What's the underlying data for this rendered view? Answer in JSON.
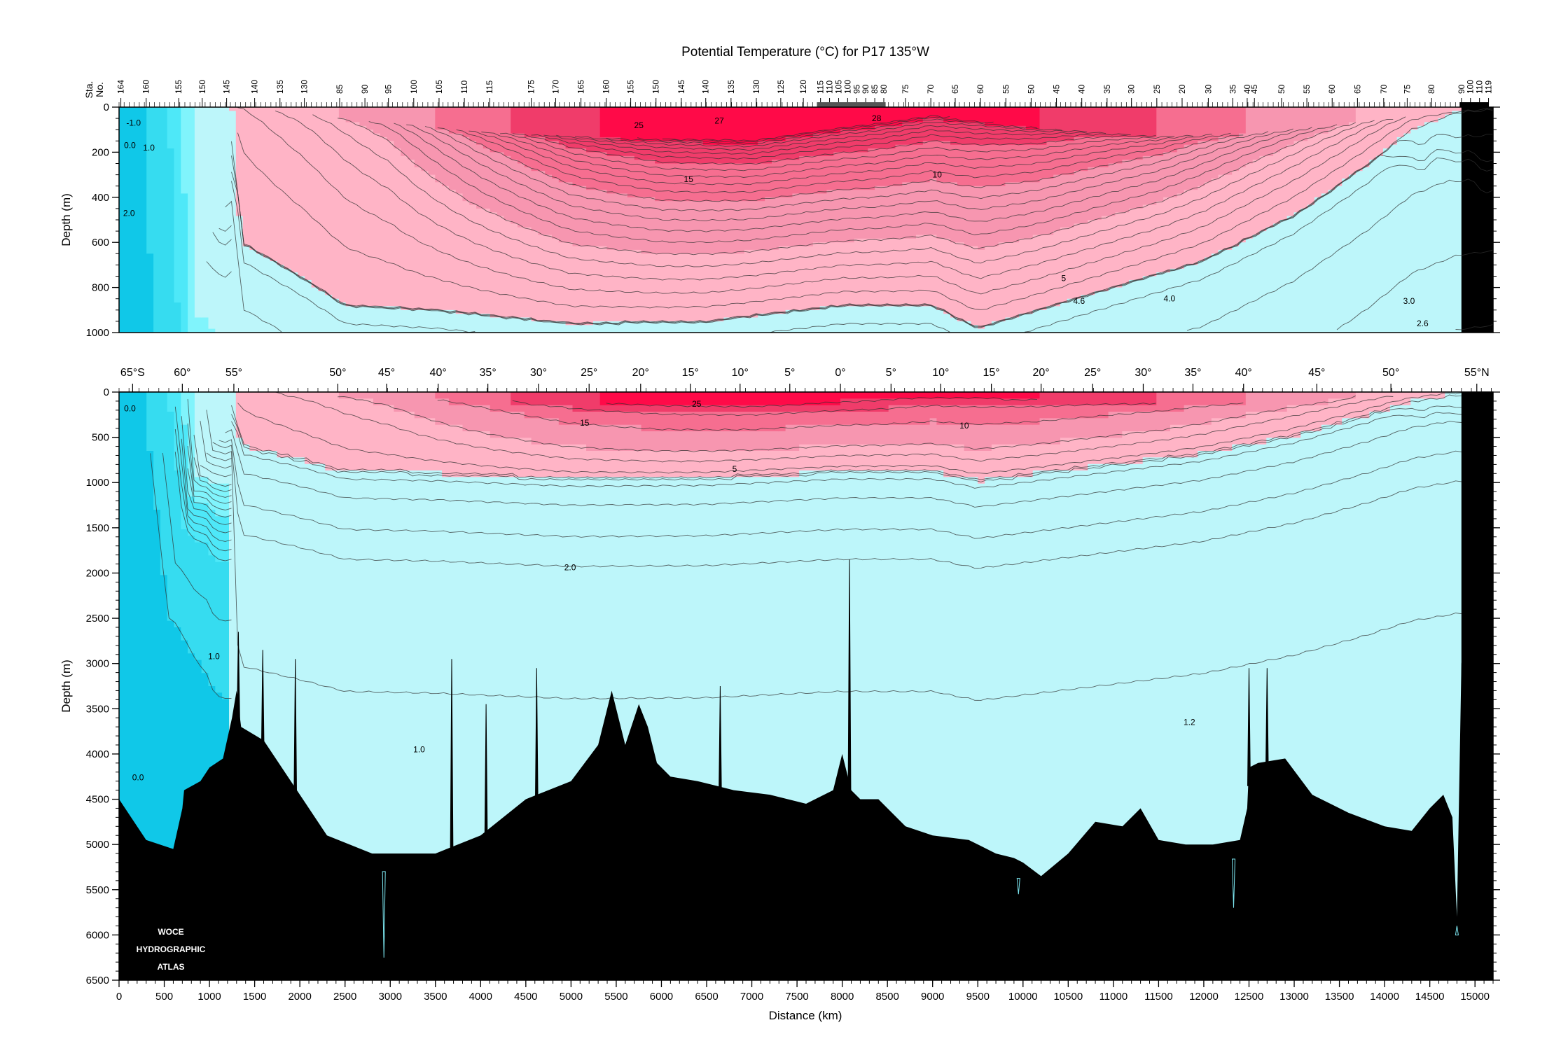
{
  "chart_data": {
    "type": "heatmap",
    "title": "Potential Temperature (°C) for P17 135°W",
    "xlabel": "Distance (km)",
    "ylabel": "Depth (m)",
    "station_axis_label": "Sta. No.",
    "watermark": [
      "WOCE",
      "HYDROGRAPHIC",
      "ATLAS"
    ],
    "xlim": [
      0,
      15200
    ],
    "x_ticks": [
      0,
      500,
      1000,
      1500,
      2000,
      2500,
      3000,
      3500,
      4000,
      4500,
      5000,
      5500,
      6000,
      6500,
      7000,
      7500,
      8000,
      8500,
      9000,
      9500,
      10000,
      10500,
      11000,
      11500,
      12000,
      12500,
      13000,
      13500,
      14000,
      14500,
      15000
    ],
    "upper_panel": {
      "ylim": [
        0,
        1000
      ],
      "y_ticks": [
        0,
        200,
        400,
        600,
        800,
        1000
      ]
    },
    "lower_panel": {
      "ylim": [
        0,
        6500
      ],
      "y_ticks": [
        0,
        500,
        1000,
        1500,
        2000,
        2500,
        3000,
        3500,
        4000,
        4500,
        5000,
        5500,
        6000,
        6500
      ]
    },
    "latitude_labels": [
      {
        "label": "65°S",
        "km": 150
      },
      {
        "label": "60°",
        "km": 700
      },
      {
        "label": "55°",
        "km": 1270
      },
      {
        "label": "50°",
        "km": 2420
      },
      {
        "label": "45°",
        "km": 2960
      },
      {
        "label": "40°",
        "km": 3530
      },
      {
        "label": "35°",
        "km": 4080
      },
      {
        "label": "30°",
        "km": 4640
      },
      {
        "label": "25°",
        "km": 5200
      },
      {
        "label": "20°",
        "km": 5770
      },
      {
        "label": "15°",
        "km": 6320
      },
      {
        "label": "10°",
        "km": 6870
      },
      {
        "label": "5°",
        "km": 7420
      },
      {
        "label": "0°",
        "km": 7980
      },
      {
        "label": "5°",
        "km": 8540
      },
      {
        "label": "10°",
        "km": 9090
      },
      {
        "label": "15°",
        "km": 9650
      },
      {
        "label": "20°",
        "km": 10200
      },
      {
        "label": "25°",
        "km": 10770
      },
      {
        "label": "30°",
        "km": 11330
      },
      {
        "label": "35°",
        "km": 11880
      },
      {
        "label": "40°",
        "km": 12440
      },
      {
        "label": "45°",
        "km": 13250
      },
      {
        "label": "50°",
        "km": 14070
      },
      {
        "label": "55°N",
        "km": 15020
      }
    ],
    "station_labels": [
      {
        "label": "164",
        "km": 20
      },
      {
        "label": "160",
        "km": 300
      },
      {
        "label": "155",
        "km": 660
      },
      {
        "label": "150",
        "km": 920
      },
      {
        "label": "145",
        "km": 1190
      },
      {
        "label": "140",
        "km": 1500
      },
      {
        "label": "135",
        "km": 1780
      },
      {
        "label": "130",
        "km": 2050
      },
      {
        "label": "85",
        "km": 2440
      },
      {
        "label": "90",
        "km": 2720
      },
      {
        "label": "95",
        "km": 2980
      },
      {
        "label": "100",
        "km": 3260
      },
      {
        "label": "105",
        "km": 3540
      },
      {
        "label": "110",
        "km": 3820
      },
      {
        "label": "115",
        "km": 4100
      },
      {
        "label": "175",
        "km": 4560
      },
      {
        "label": "170",
        "km": 4830
      },
      {
        "label": "165",
        "km": 5110
      },
      {
        "label": "160",
        "km": 5390
      },
      {
        "label": "155",
        "km": 5660
      },
      {
        "label": "150",
        "km": 5940
      },
      {
        "label": "145",
        "km": 6220
      },
      {
        "label": "140",
        "km": 6490
      },
      {
        "label": "135",
        "km": 6770
      },
      {
        "label": "130",
        "km": 7050
      },
      {
        "label": "125",
        "km": 7320
      },
      {
        "label": "120",
        "km": 7570
      },
      {
        "label": "115",
        "km": 7760
      },
      {
        "label": "110",
        "km": 7860
      },
      {
        "label": "105",
        "km": 7960
      },
      {
        "label": "100",
        "km": 8060
      },
      {
        "label": "95",
        "km": 8160
      },
      {
        "label": "90",
        "km": 8260
      },
      {
        "label": "85",
        "km": 8360
      },
      {
        "label": "80",
        "km": 8460
      },
      {
        "label": "75",
        "km": 8700
      },
      {
        "label": "70",
        "km": 8980
      },
      {
        "label": "65",
        "km": 9250
      },
      {
        "label": "60",
        "km": 9530
      },
      {
        "label": "55",
        "km": 9810
      },
      {
        "label": "50",
        "km": 10090
      },
      {
        "label": "45",
        "km": 10370
      },
      {
        "label": "40",
        "km": 10650
      },
      {
        "label": "35",
        "km": 10930
      },
      {
        "label": "30",
        "km": 11200
      },
      {
        "label": "25",
        "km": 11480
      },
      {
        "label": "20",
        "km": 11760
      },
      {
        "label": "30",
        "km": 12050
      },
      {
        "label": "35",
        "km": 12320
      },
      {
        "label": "40",
        "km": 12480
      },
      {
        "label": "45",
        "km": 12560
      },
      {
        "label": "50",
        "km": 12860
      },
      {
        "label": "55",
        "km": 13140
      },
      {
        "label": "60",
        "km": 13420
      },
      {
        "label": "65",
        "km": 13700
      },
      {
        "label": "70",
        "km": 13990
      },
      {
        "label": "75",
        "km": 14250
      },
      {
        "label": "80",
        "km": 14520
      },
      {
        "label": "90",
        "km": 14850
      },
      {
        "label": "100",
        "km": 14950
      },
      {
        "label": "110",
        "km": 15050
      },
      {
        "label": "119",
        "km": 15150
      }
    ],
    "color_classes": [
      {
        "t_min": 25,
        "color": "#ff0a48"
      },
      {
        "t_min": 20,
        "color": "#f03c6a"
      },
      {
        "t_min": 15,
        "color": "#f66e90"
      },
      {
        "t_min": 10,
        "color": "#f796b0"
      },
      {
        "t_min": 5,
        "color": "#ffb4c6"
      },
      {
        "t_min": 2,
        "color": "#bdf6fa"
      },
      {
        "t_min": 1.5,
        "color": "#80f4fc"
      },
      {
        "t_min": 1.0,
        "color": "#4ee8f8"
      },
      {
        "t_min": 0.0,
        "color": "#36dcf0"
      },
      {
        "t_min": -99,
        "color": "#10c8e8"
      }
    ],
    "bottom_color": "#000000",
    "contour_labels_upper": [
      {
        "label": "-1.0",
        "km": 160,
        "depth": 70
      },
      {
        "label": "0.0",
        "km": 120,
        "depth": 170
      },
      {
        "label": "1.0",
        "km": 330,
        "depth": 180
      },
      {
        "label": "2.0",
        "km": 110,
        "depth": 470
      },
      {
        "label": "25",
        "km": 5750,
        "depth": 80
      },
      {
        "label": "27",
        "km": 6640,
        "depth": 60
      },
      {
        "label": "28",
        "km": 8380,
        "depth": 50
      },
      {
        "label": "15",
        "km": 6300,
        "depth": 320
      },
      {
        "label": "10",
        "km": 9050,
        "depth": 300
      },
      {
        "label": "5",
        "km": 10450,
        "depth": 760
      },
      {
        "label": "4.6",
        "km": 10620,
        "depth": 860
      },
      {
        "label": "4.0",
        "km": 11620,
        "depth": 850
      },
      {
        "label": "3.0",
        "km": 14270,
        "depth": 860
      },
      {
        "label": "2.6",
        "km": 14420,
        "depth": 960
      }
    ],
    "contour_labels_lower": [
      {
        "label": "0.0",
        "km": 120,
        "depth": 180
      },
      {
        "label": "25",
        "km": 6390,
        "depth": 130
      },
      {
        "label": "15",
        "km": 5150,
        "depth": 340
      },
      {
        "label": "10",
        "km": 9350,
        "depth": 370
      },
      {
        "label": "5",
        "km": 6810,
        "depth": 850
      },
      {
        "label": "2.0",
        "km": 4990,
        "depth": 1940
      },
      {
        "label": "1.0",
        "km": 1050,
        "depth": 2920
      },
      {
        "label": "1.0",
        "km": 3320,
        "depth": 3950
      },
      {
        "label": "1.2",
        "km": 11840,
        "depth": 3650
      },
      {
        "label": "0.0",
        "km": 210,
        "depth": 4260
      }
    ],
    "bathymetry": {
      "km": [
        0,
        300,
        600,
        700,
        720,
        900,
        1000,
        1150,
        1250,
        1300,
        1350,
        1600,
        1900,
        2300,
        2800,
        3500,
        4000,
        4500,
        5000,
        5300,
        5450,
        5600,
        5750,
        5850,
        5950,
        6100,
        6400,
        6800,
        7200,
        7600,
        7900,
        8000,
        8100,
        8200,
        8400,
        8700,
        9000,
        9400,
        9700,
        9900,
        10000,
        10200,
        10500,
        10800,
        11100,
        11300,
        11500,
        11800,
        12100,
        12400,
        12480,
        12500,
        12600,
        12900,
        13200,
        13600,
        14000,
        14300,
        14500,
        14650,
        14750,
        14800,
        14850,
        15200
      ],
      "depth": [
        4500,
        4950,
        5050,
        4600,
        4400,
        4300,
        4150,
        4050,
        3600,
        3300,
        3700,
        3850,
        4300,
        4900,
        5100,
        5100,
        4900,
        4500,
        4300,
        3900,
        3300,
        3900,
        3450,
        3700,
        4100,
        4250,
        4300,
        4400,
        4450,
        4550,
        4400,
        4000,
        4400,
        4500,
        4500,
        4800,
        4900,
        4950,
        5100,
        5150,
        5200,
        5350,
        5100,
        4750,
        4800,
        4600,
        4950,
        5000,
        5000,
        4950,
        4600,
        4150,
        4100,
        4050,
        4450,
        4650,
        4800,
        4850,
        4600,
        4450,
        4700,
        5800,
        3000,
        0
      ]
    },
    "seamount_spikes": [
      {
        "km": 1320,
        "depth": 2650
      },
      {
        "km": 1590,
        "depth": 2850
      },
      {
        "km": 1950,
        "depth": 2950
      },
      {
        "km": 2930,
        "depth": 6250
      },
      {
        "km": 3680,
        "depth": 2950
      },
      {
        "km": 4060,
        "depth": 3450
      },
      {
        "km": 4620,
        "depth": 3050
      },
      {
        "km": 6650,
        "depth": 3250
      },
      {
        "km": 8080,
        "depth": 1850
      },
      {
        "km": 9950,
        "depth": 5550
      },
      {
        "km": 12330,
        "depth": 5700
      },
      {
        "km": 12500,
        "depth": 3050
      },
      {
        "km": 12700,
        "depth": 3050
      },
      {
        "km": 14800,
        "depth": 5900
      }
    ]
  }
}
